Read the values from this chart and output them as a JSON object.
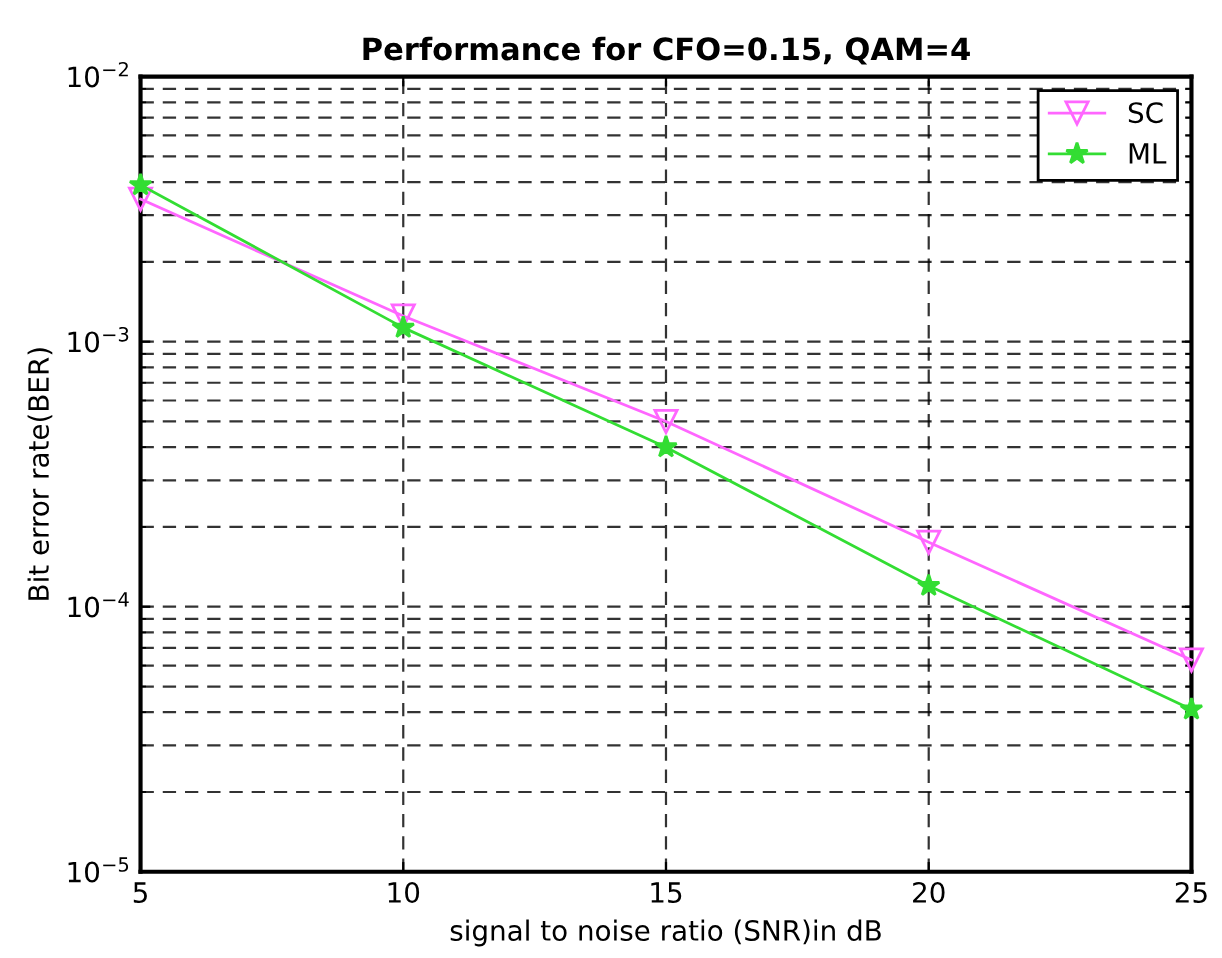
{
  "chart_data": {
    "type": "line",
    "title": "Performance for CFO=0.15, QAM=4",
    "xlabel": "signal to noise ratio (SNR)in dB",
    "ylabel": "Bit error rate(BER)",
    "log": "y",
    "x": [
      5,
      10,
      15,
      20,
      25
    ],
    "series": [
      {
        "name": "SC",
        "color": "#ff66ff",
        "marker": "triangle",
        "values": [
          0.00345,
          0.00125,
          0.0005,
          0.000175,
          6.3e-05
        ]
      },
      {
        "name": "ML",
        "color": "#33dd33",
        "marker": "star",
        "values": [
          0.0039,
          0.00113,
          0.0004,
          0.00012,
          4.1e-05
        ]
      }
    ],
    "xlim": [
      5,
      25
    ],
    "xticks": [
      5,
      10,
      15,
      20,
      25
    ],
    "ylim": [
      1e-05,
      0.01
    ],
    "yticks": [
      {
        "value": 1e-05,
        "label": "10$^{−5}$"
      },
      {
        "value": 0.0001,
        "label": "10$^{−4}$"
      },
      {
        "value": 0.001,
        "label": "10$^{−3}$"
      },
      {
        "value": 0.01,
        "label": "10$^{−2}$"
      }
    ],
    "grid": true,
    "line_style": "solid",
    "legend": "top right"
  }
}
